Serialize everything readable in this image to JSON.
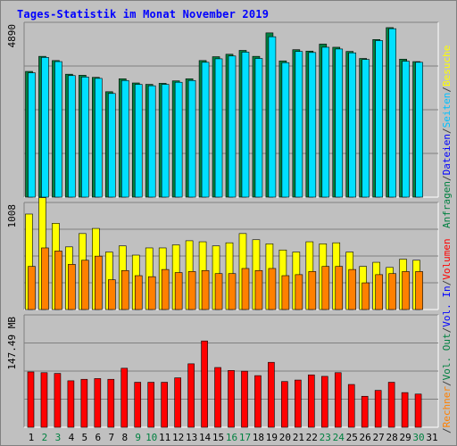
{
  "title": "Tages-Statistik im Monat November 2019",
  "right_labels": {
    "top": [
      {
        "text": "Anfragen",
        "color": "#008040"
      },
      {
        "text": "/",
        "color": "#404040"
      },
      {
        "text": "Dateien",
        "color": "#0000ff"
      },
      {
        "text": "/",
        "color": "#404040"
      },
      {
        "text": "Seiten",
        "color": "#00c0ff"
      },
      {
        "text": "/",
        "color": "#404040"
      },
      {
        "text": "Besuche",
        "color": "#ffff00"
      }
    ],
    "mid": [
      {
        "text": "/",
        "color": "#404040"
      },
      {
        "text": "Rechner",
        "color": "#ff8000"
      },
      {
        "text": "/",
        "color": "#404040"
      },
      {
        "text": "Vol. Out",
        "color": "#008040"
      },
      {
        "text": "/",
        "color": "#404040"
      },
      {
        "text": "Vol. In",
        "color": "#0000ff"
      },
      {
        "text": "/",
        "color": "#404040"
      },
      {
        "text": "Volumen",
        "color": "#ff0000"
      }
    ]
  },
  "chart_data": {
    "type": "bar",
    "title": "Tages-Statistik im Monat November 2019",
    "days": [
      "1",
      "2",
      "3",
      "4",
      "5",
      "6",
      "7",
      "8",
      "9",
      "10",
      "11",
      "12",
      "13",
      "14",
      "15",
      "16",
      "17",
      "18",
      "19",
      "20",
      "21",
      "22",
      "23",
      "24",
      "25",
      "26",
      "27",
      "28",
      "29",
      "30",
      "31"
    ],
    "weekend_days": [
      "2",
      "3",
      "9",
      "10",
      "16",
      "17",
      "23",
      "24",
      "30"
    ],
    "colors": {
      "anfragen": "#008040",
      "dateien": "#0000ff",
      "seiten": "#00e0ff",
      "besuche": "#ffff00",
      "rechner": "#ff8000",
      "volumen": "#ff0000",
      "day_weekday": "#000000",
      "day_weekend": "#008040"
    },
    "panels": [
      {
        "name": "hits",
        "ylabel": "4890",
        "ymax": 4890,
        "series": [
          {
            "name": "Anfragen",
            "values": [
              3590,
              4020,
              3900,
              3510,
              3480,
              3420,
              3010,
              3380,
              3260,
              3220,
              3250,
              3320,
              3380,
              3900,
              4010,
              4080,
              4190,
              4020,
              4690,
              3890,
              4210,
              4170,
              4370,
              4280,
              4160,
              3960,
              4500,
              4840,
              3940,
              3870,
              null
            ]
          },
          {
            "name": "Dateien",
            "values": [
              3550,
              3990,
              3870,
              3470,
              3430,
              3390,
              2960,
              3330,
              3220,
              3180,
              3220,
              3280,
              3330,
              3850,
              3950,
              4030,
              4140,
              3960,
              4580,
              3840,
              4160,
              4130,
              4280,
              4230,
              4120,
              3930,
              4470,
              4810,
              3880,
              3850,
              null
            ]
          }
        ]
      },
      {
        "name": "visits",
        "ylabel": "1008",
        "ymax": 1008,
        "series": [
          {
            "name": "Besuche",
            "values": [
              930,
              1090,
              840,
              610,
              740,
              790,
              560,
              620,
              530,
              600,
              600,
              630,
              670,
              660,
              620,
              650,
              740,
              680,
              640,
              580,
              560,
              660,
              640,
              650,
              560,
              420,
              460,
              410,
              490,
              480,
              null
            ]
          },
          {
            "name": "Rechner",
            "values": [
              420,
              600,
              570,
              440,
              480,
              520,
              290,
              380,
              330,
              320,
              390,
              360,
              370,
              380,
              350,
              350,
              400,
              380,
              400,
              330,
              340,
              370,
              420,
              420,
              390,
              260,
              340,
              350,
              370,
              370,
              null
            ]
          }
        ]
      },
      {
        "name": "volume",
        "ylabel": "147.49 MB",
        "ymax": 147.49,
        "series": [
          {
            "name": "Volumen",
            "values": [
              75,
              74,
              73,
              63,
              65,
              66,
              65,
              80,
              61,
              61,
              61,
              67,
              86,
              117,
              81,
              77,
              76,
              70,
              88,
              62,
              64,
              71,
              69,
              74,
              58,
              42,
              50,
              61,
              47,
              45,
              null
            ]
          }
        ]
      }
    ]
  }
}
